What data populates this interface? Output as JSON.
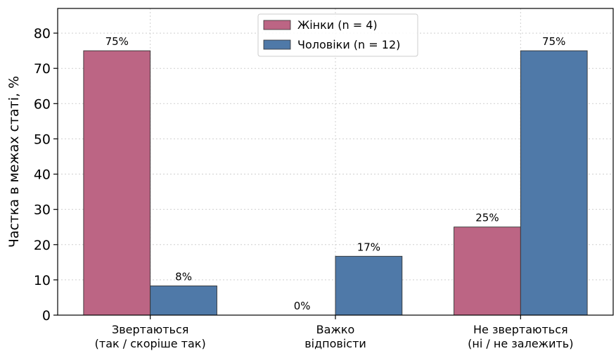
{
  "chart_data": {
    "type": "bar",
    "categories": [
      [
        "Звертаються",
        "(так / скоріше так)"
      ],
      [
        "Важко",
        "відповісти"
      ],
      [
        "Не звертаються",
        "(ні / не залежить)"
      ]
    ],
    "series": [
      {
        "name": "Жінки (n = 4)",
        "values": [
          75,
          0,
          25
        ],
        "labels": [
          "75%",
          "0%",
          "25%"
        ],
        "color": "#bc6584"
      },
      {
        "name": "Чоловіки (n = 12)",
        "values": [
          8.3,
          16.7,
          75
        ],
        "labels": [
          "8%",
          "17%",
          "75%"
        ],
        "color": "#4f79a8"
      }
    ],
    "ylabel": "Частка в межах статі, %",
    "ylim": [
      0,
      87
    ],
    "yticks": [
      0,
      10,
      20,
      30,
      40,
      50,
      60,
      70,
      80
    ],
    "grid": true,
    "legend_position": "top-center"
  }
}
